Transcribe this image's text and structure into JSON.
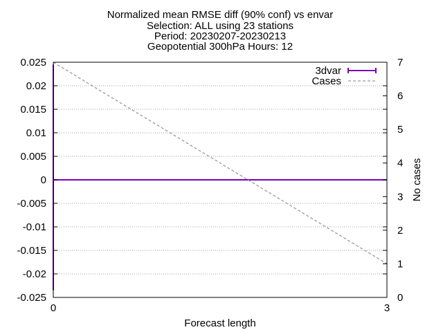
{
  "chart_data": {
    "type": "line",
    "title_lines": [
      "Normalized mean RMSE diff (90% conf) vs envar",
      "Selection: ALL using    23 stations",
      "Period: 20230207-20230213",
      "Geopotential 300hPa   Hours: 12"
    ],
    "xlabel": "Forecast length",
    "ylabel_right": "No cases",
    "xlim": [
      0,
      3
    ],
    "ylim_left": [
      -0.025,
      0.025
    ],
    "ylim_right": [
      0,
      7
    ],
    "x_ticks": [
      "0",
      "3"
    ],
    "y_ticks_left": [
      "0.025",
      "0.02",
      "0.015",
      "0.01",
      "0.005",
      "0",
      "-0.005",
      "-0.01",
      "-0.015",
      "-0.02",
      "-0.025"
    ],
    "y_ticks_right": [
      "7",
      "6",
      "5",
      "4",
      "3",
      "2",
      "1",
      "0"
    ],
    "grid": true,
    "legend_position": "top-right",
    "series": [
      {
        "name": "3dvar",
        "axis": "left",
        "color": "#7b00b4",
        "style": "solid-errorbars",
        "x": [
          0,
          1.5,
          3
        ],
        "y": [
          0.0,
          0.0,
          0.0
        ],
        "error_at_x0": [
          -0.0235,
          0.0245
        ]
      },
      {
        "name": "Cases",
        "axis": "right",
        "color": "#999999",
        "style": "dashed",
        "x": [
          0,
          3
        ],
        "y": [
          7,
          1
        ]
      }
    ]
  }
}
